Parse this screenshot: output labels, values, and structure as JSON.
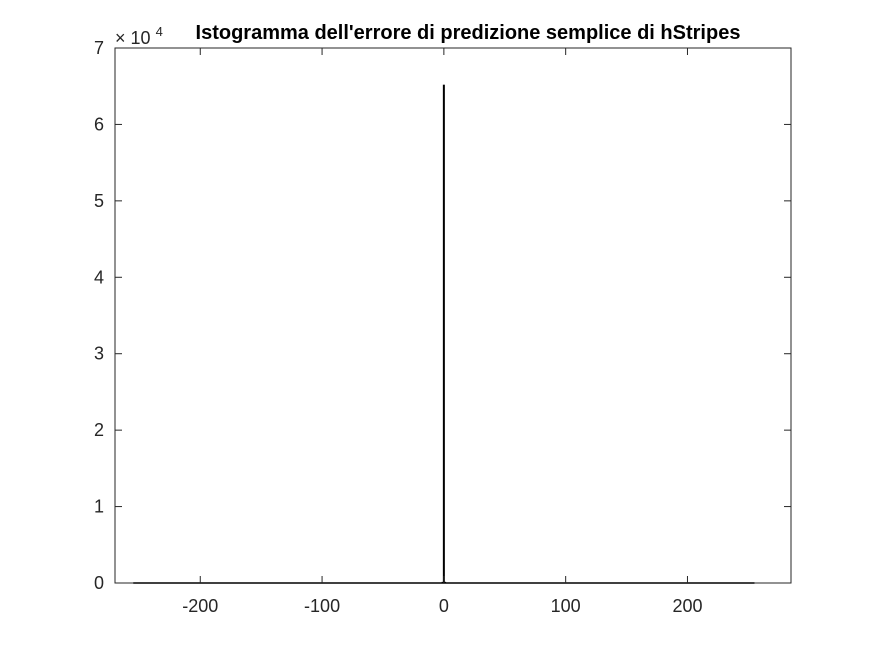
{
  "chart_data": {
    "type": "bar",
    "title": "Istogramma dell'errore di predizione semplice di hStripes",
    "xlabel": "",
    "ylabel": "",
    "xlim": [
      -270,
      285
    ],
    "ylim": [
      0,
      70000
    ],
    "xticks": [
      -200,
      -100,
      0,
      100,
      200
    ],
    "xtick_labels": [
      "-200",
      "-100",
      "0",
      "100",
      "200"
    ],
    "yticks": [
      0,
      10000,
      20000,
      30000,
      40000,
      50000,
      60000,
      70000
    ],
    "ytick_labels": [
      "0",
      "1",
      "2",
      "3",
      "4",
      "5",
      "6",
      "7"
    ],
    "y_exponent_label": "× 10",
    "y_exponent": "4",
    "grid": false,
    "bins": [
      -255,
      255
    ],
    "series": [
      {
        "x": [
          -1,
          0,
          1
        ],
        "values": [
          150,
          65200,
          150
        ]
      }
    ],
    "colors": {
      "axes": "#262626",
      "bars": "#000000",
      "background": "#ffffff"
    }
  }
}
